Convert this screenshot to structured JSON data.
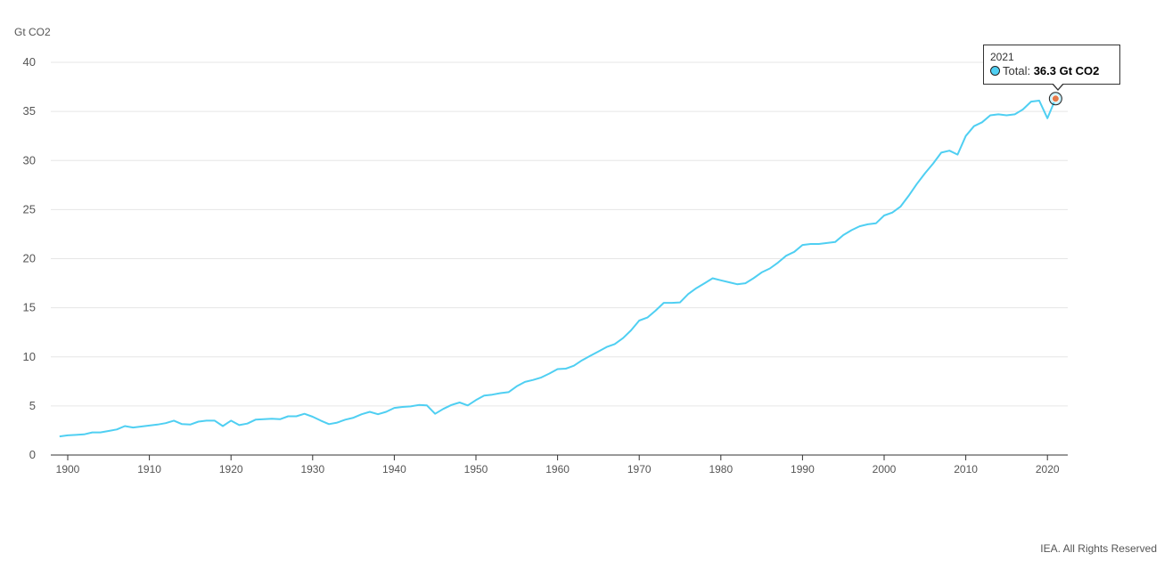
{
  "footer": "IEA. All Rights Reserved",
  "tooltip": {
    "year": "2021",
    "series_label": "Total",
    "value_text": "36.3 Gt CO2"
  },
  "colors": {
    "line": "#4fcff2",
    "grid": "#e6e6e6",
    "axis": "#333333",
    "highlight": "#e2794a"
  },
  "chart_data": {
    "type": "line",
    "title": "",
    "ylabel": "Gt CO2",
    "xlabel": "",
    "ylim": [
      0,
      40
    ],
    "xlim": [
      1899,
      2021
    ],
    "yticks": [
      0,
      5,
      10,
      15,
      20,
      25,
      30,
      35,
      40
    ],
    "xticks": [
      1900,
      1910,
      1920,
      1930,
      1940,
      1950,
      1960,
      1970,
      1980,
      1990,
      2000,
      2010,
      2020
    ],
    "grid": true,
    "legend": "none",
    "series": [
      {
        "name": "Total",
        "x": [
          1899,
          1900,
          1901,
          1902,
          1903,
          1904,
          1905,
          1906,
          1907,
          1908,
          1909,
          1910,
          1911,
          1912,
          1913,
          1914,
          1915,
          1916,
          1917,
          1918,
          1919,
          1920,
          1921,
          1922,
          1923,
          1924,
          1925,
          1926,
          1927,
          1928,
          1929,
          1930,
          1931,
          1932,
          1933,
          1934,
          1935,
          1936,
          1937,
          1938,
          1939,
          1940,
          1941,
          1942,
          1943,
          1944,
          1945,
          1946,
          1947,
          1948,
          1949,
          1950,
          1951,
          1952,
          1953,
          1954,
          1955,
          1956,
          1957,
          1958,
          1959,
          1960,
          1961,
          1962,
          1963,
          1964,
          1965,
          1966,
          1967,
          1968,
          1969,
          1970,
          1971,
          1972,
          1973,
          1974,
          1975,
          1976,
          1977,
          1978,
          1979,
          1980,
          1981,
          1982,
          1983,
          1984,
          1985,
          1986,
          1987,
          1988,
          1989,
          1990,
          1991,
          1992,
          1993,
          1994,
          1995,
          1996,
          1997,
          1998,
          1999,
          2000,
          2001,
          2002,
          2003,
          2004,
          2005,
          2006,
          2007,
          2008,
          2009,
          2010,
          2011,
          2012,
          2013,
          2014,
          2015,
          2016,
          2017,
          2018,
          2019,
          2020,
          2021
        ],
        "values": [
          1.9,
          2.0,
          2.05,
          2.1,
          2.3,
          2.3,
          2.45,
          2.6,
          2.95,
          2.8,
          2.9,
          3.0,
          3.1,
          3.25,
          3.5,
          3.15,
          3.1,
          3.4,
          3.5,
          3.5,
          2.95,
          3.5,
          3.05,
          3.2,
          3.6,
          3.65,
          3.7,
          3.65,
          3.95,
          3.95,
          4.2,
          3.9,
          3.5,
          3.15,
          3.3,
          3.6,
          3.8,
          4.15,
          4.4,
          4.15,
          4.4,
          4.8,
          4.9,
          4.95,
          5.1,
          5.05,
          4.2,
          4.7,
          5.1,
          5.35,
          5.05,
          5.6,
          6.05,
          6.15,
          6.3,
          6.4,
          7.0,
          7.45,
          7.65,
          7.9,
          8.3,
          8.75,
          8.8,
          9.1,
          9.65,
          10.1,
          10.55,
          11.0,
          11.3,
          11.9,
          12.7,
          13.7,
          14.0,
          14.7,
          15.5,
          15.5,
          15.55,
          16.4,
          17.0,
          17.5,
          18.0,
          17.8,
          17.6,
          17.4,
          17.5,
          18.0,
          18.6,
          19.0,
          19.6,
          20.3,
          20.7,
          21.4,
          21.5,
          21.5,
          21.6,
          21.7,
          22.4,
          22.9,
          23.3,
          23.5,
          23.6,
          24.4,
          24.7,
          25.3,
          26.4,
          27.6,
          28.7,
          29.7,
          30.8,
          31.0,
          30.6,
          32.5,
          33.5,
          33.9,
          34.6,
          34.7,
          34.6,
          34.7,
          35.2,
          36.0,
          36.1,
          34.3,
          36.3
        ]
      }
    ]
  }
}
